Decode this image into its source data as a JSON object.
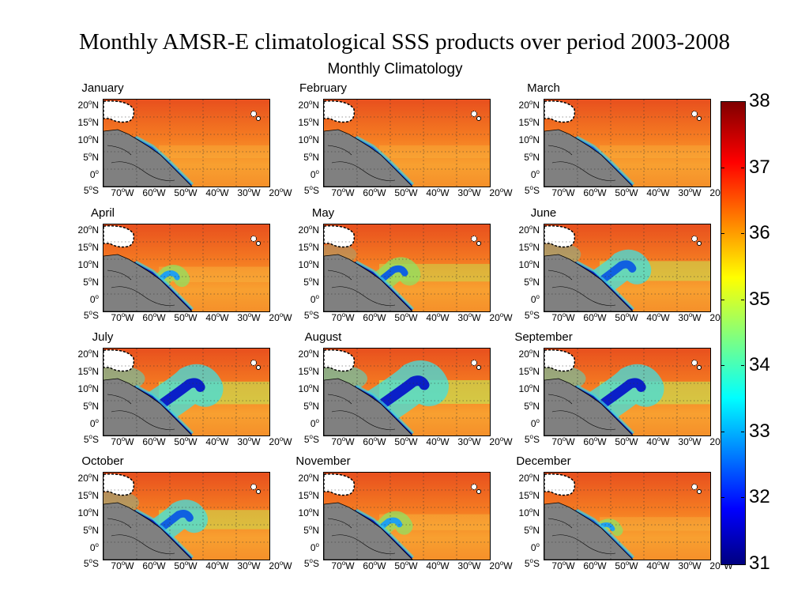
{
  "title": "Monthly AMSR-E climatological SSS products over period 2003-2008",
  "figure_title": "Monthly Climatology",
  "lat_labels": [
    "20",
    "15",
    "10",
    "5",
    "0",
    "5"
  ],
  "lat_suffixes": [
    "N",
    "N",
    "N",
    "N",
    "",
    "S"
  ],
  "lon_labels": [
    "70",
    "60",
    "50",
    "40",
    "30",
    "20"
  ],
  "lon_suffix": "W",
  "degree_symbol": "o",
  "months": [
    {
      "name": "January",
      "plume": 0.0
    },
    {
      "name": "February",
      "plume": 0.0
    },
    {
      "name": "March",
      "plume": 0.0
    },
    {
      "name": "April",
      "plume": 0.25
    },
    {
      "name": "May",
      "plume": 0.45
    },
    {
      "name": "June",
      "plume": 0.65
    },
    {
      "name": "July",
      "plume": 0.9
    },
    {
      "name": "August",
      "plume": 1.0
    },
    {
      "name": "September",
      "plume": 0.9
    },
    {
      "name": "October",
      "plume": 0.6
    },
    {
      "name": "November",
      "plume": 0.3
    },
    {
      "name": "December",
      "plume": 0.1
    }
  ],
  "colorbar": {
    "min": 31,
    "max": 38,
    "ticks": [
      "38",
      "37",
      "36",
      "35",
      "34",
      "33",
      "32",
      "31"
    ],
    "colormap": "jet"
  },
  "colors": {
    "land": "#808080",
    "high_salinity": "#e8501e",
    "low_salinity": "#0a1aa0"
  }
}
